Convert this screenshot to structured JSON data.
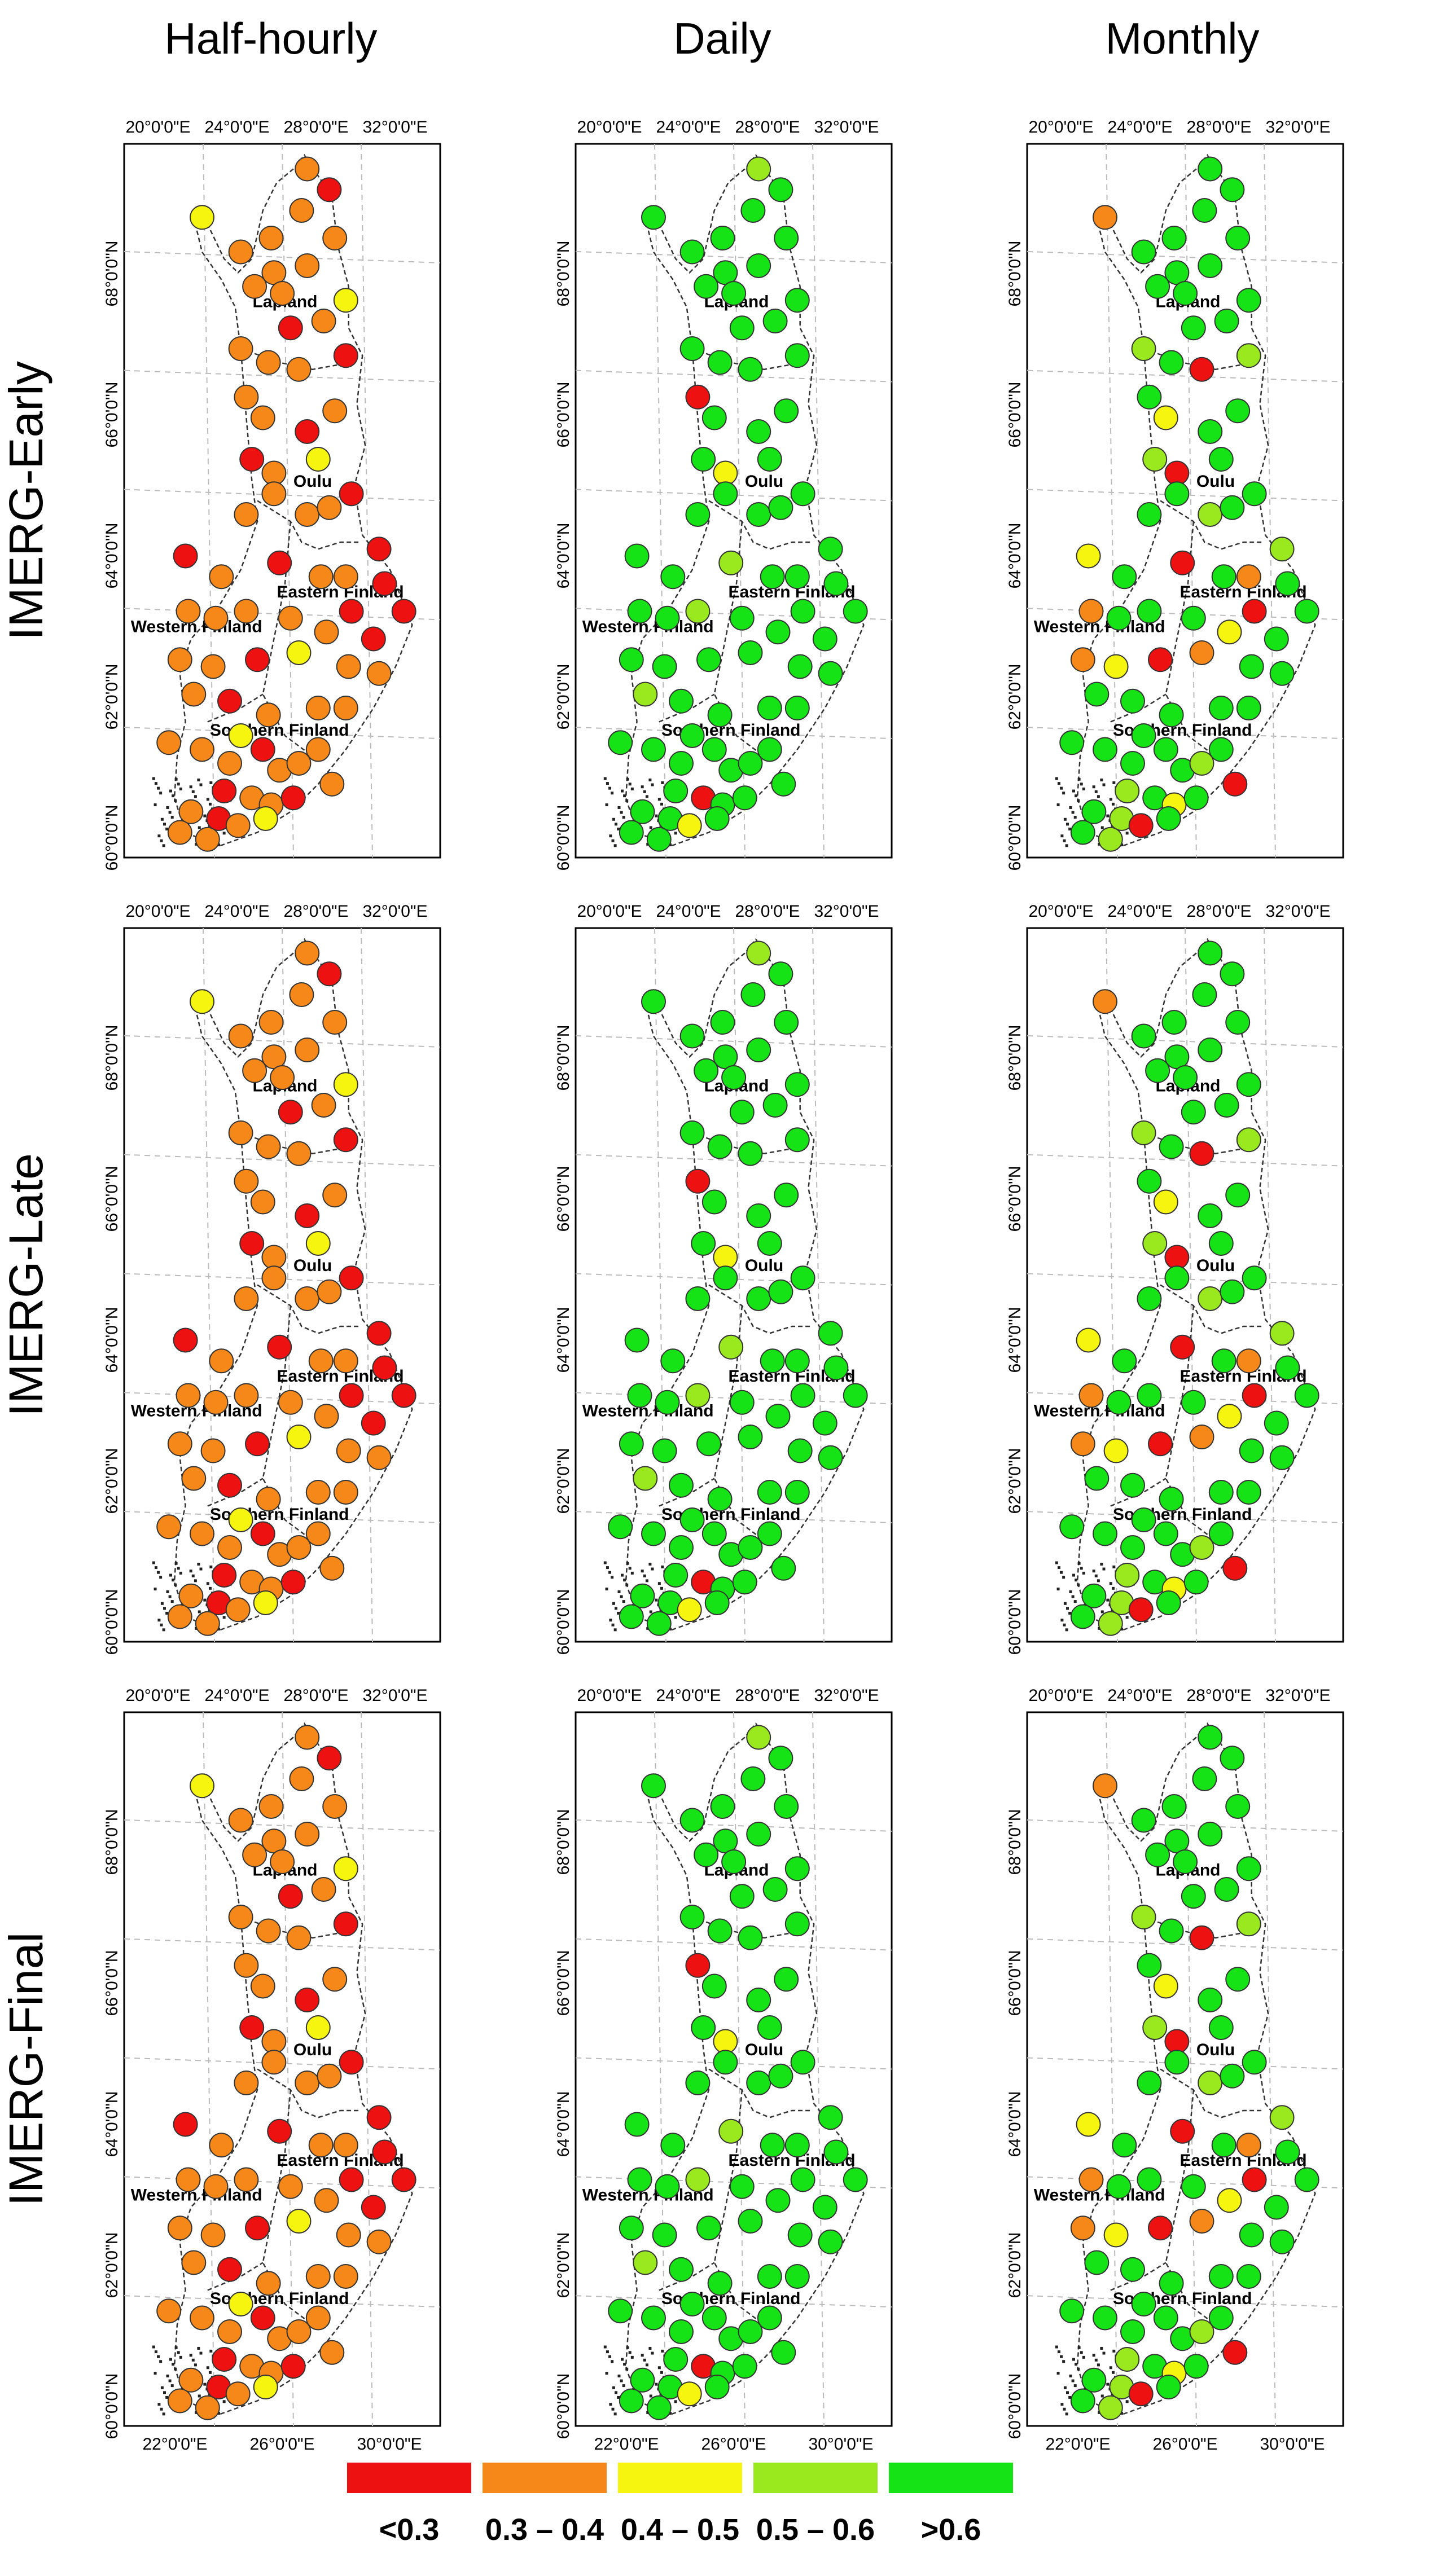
{
  "columns": [
    "Half-hourly",
    "Daily",
    "Monthly"
  ],
  "rows": [
    "IMERG-Early",
    "IMERG-Late",
    "IMERG-Final"
  ],
  "axes": {
    "top_lon_ticks": [
      "20°0'0\"E",
      "24°0'0\"E",
      "28°0'0\"E",
      "32°0'0\"E"
    ],
    "bottom_lon_ticks": [
      "22°0'0\"E",
      "26°0'0\"E",
      "30°0'0\"E"
    ],
    "lat_ticks": [
      "68°0'0\"N",
      "66°0'0\"N",
      "64°0'0\"N",
      "62°0'0\"N",
      "60°0'0\"N"
    ]
  },
  "regions": [
    "Lapland",
    "Oulu",
    "Eastern Finland",
    "Western Finland",
    "Southern Finland"
  ],
  "legend": [
    {
      "label": "<0.3",
      "color": "#ee1111"
    },
    {
      "label": "0.3 – 0.4",
      "color": "#f6881a"
    },
    {
      "label": "0.4 – 0.5",
      "color": "#f5f50f"
    },
    {
      "label": "0.5 – 0.6",
      "color": "#9ae81e"
    },
    {
      "label": ">0.6",
      "color": "#16e316"
    }
  ],
  "panel_class_pattern": {
    "Half-hourly": {
      "default": 1,
      "exceptions": {
        "0": [
          4,
          12,
          17,
          20,
          22,
          28,
          30,
          31,
          33,
          36,
          37,
          38,
          44,
          47
        ],
        "2": [
          0,
          11,
          24
        ]
      }
    },
    "Daily": {
      "default": 4,
      "exceptions": {
        "0": [
          18
        ],
        "2": [
          23
        ],
        "3": [
          3,
          33,
          41
        ]
      }
    },
    "Monthly": {
      "default": 4,
      "exceptions": {
        "0": [
          16,
          23,
          33,
          36,
          47
        ],
        "1": [
          0,
          35,
          39,
          45
        ],
        "2": [
          19,
          31,
          43,
          46
        ],
        "3": [
          14,
          17,
          22,
          26,
          30
        ]
      }
    }
  }
}
